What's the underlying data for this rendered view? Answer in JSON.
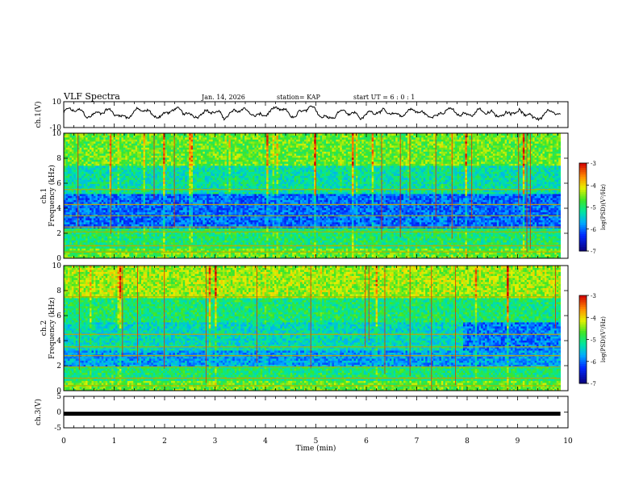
{
  "header": {
    "title": "VLF Spectra",
    "date": "Jan. 14, 2026",
    "station": "station= KAP",
    "start": "start UT =  6 : 0 : 1"
  },
  "chart_data": [
    {
      "type": "line",
      "panel": "ch1_waveform",
      "ylabel": "ch.1(V)",
      "ylim": [
        -10,
        10
      ],
      "yticks": [
        "10",
        "-10"
      ],
      "x_range_min": [
        0,
        9.85
      ],
      "series_description": "noisy waveform oscillating roughly between -4 and +6 V"
    },
    {
      "type": "heatmap",
      "panel": "ch1_spectrogram",
      "ylabel_channel": "ch.1",
      "ylabel": "Frequency (kHz)",
      "ylim": [
        0,
        10
      ],
      "yticks": [
        "0",
        "2",
        "4",
        "6",
        "8",
        "10"
      ],
      "colorbar": {
        "label": "log(PSD)(V²/Hz)",
        "range": [
          -7,
          -3
        ],
        "ticks": [
          "-3",
          "-4",
          "-5",
          "-6",
          "-7"
        ]
      },
      "horizontal_lines_khz": [
        0.5,
        1.0,
        2.1,
        2.5,
        3.4,
        4.3,
        5.5
      ]
    },
    {
      "type": "heatmap",
      "panel": "ch2_spectrogram",
      "ylabel_channel": "ch.2",
      "ylabel": "Frequency (kHz)",
      "ylim": [
        0,
        10
      ],
      "yticks": [
        "0",
        "2",
        "4",
        "6",
        "8",
        "10"
      ],
      "colorbar": {
        "label": "log(PSD)(V²/Hz)",
        "range": [
          -7,
          -3
        ],
        "ticks": [
          "-3",
          "-4",
          "-5",
          "-6",
          "-7"
        ]
      },
      "horizontal_lines_khz": [
        0.4,
        1.0,
        1.9,
        2.8,
        3.5,
        4.5,
        7.5
      ]
    },
    {
      "type": "line",
      "panel": "ch3_waveform",
      "ylabel": "ch.3(V)",
      "ylim": [
        -5,
        5
      ],
      "yticks": [
        "5",
        "0",
        "-5"
      ],
      "constant_value_v": -0.5,
      "x_range_min": [
        0,
        9.85
      ]
    }
  ],
  "xaxis": {
    "label": "Time (min)",
    "range": [
      0,
      10
    ],
    "ticks": [
      "0",
      "1",
      "2",
      "3",
      "4",
      "5",
      "6",
      "7",
      "8",
      "9",
      "10"
    ]
  }
}
